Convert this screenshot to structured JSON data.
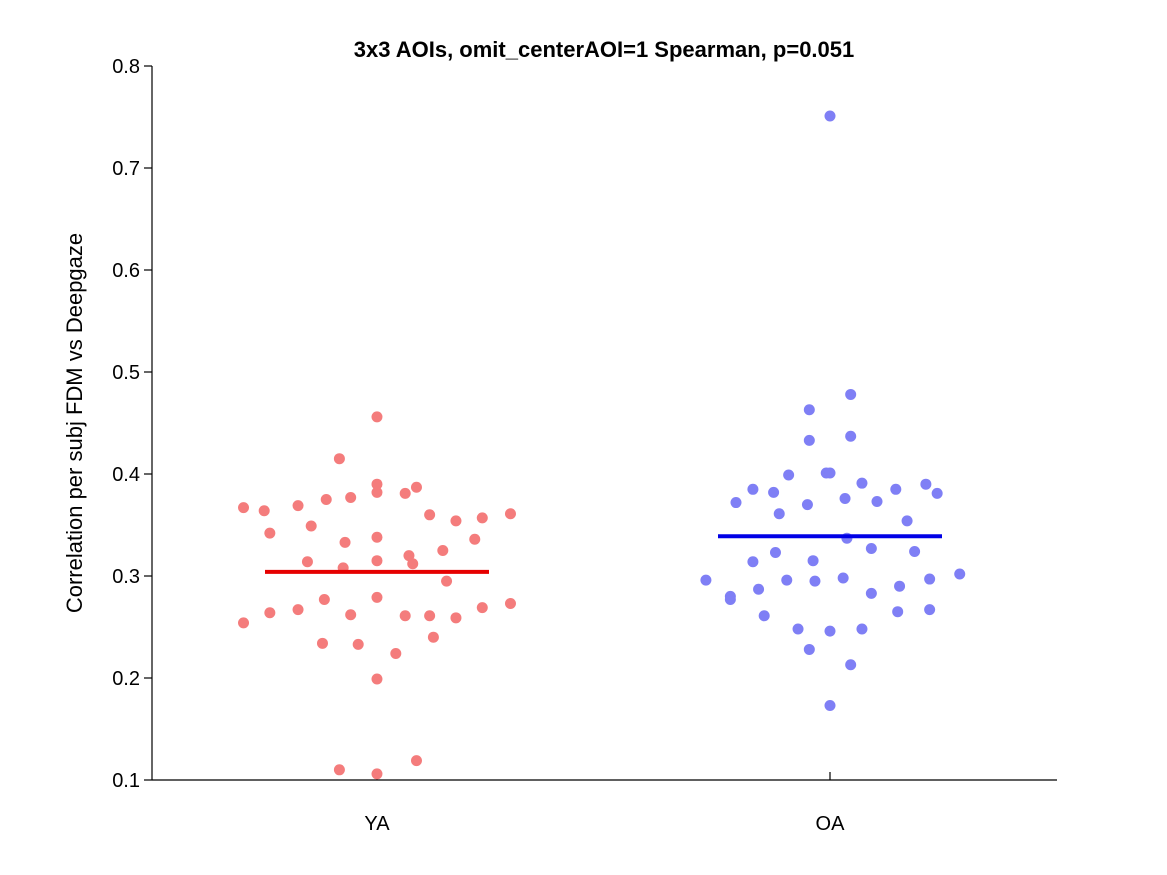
{
  "chart_data": {
    "type": "scatter",
    "title": "3x3 AOIs, omit_centerAOI=1 Spearman, p=0.051",
    "xlabel": "",
    "ylabel": "Correlation per subj FDM vs Deepgaze",
    "ylim": [
      0.1,
      0.8
    ],
    "yticks": [
      "0.1",
      "0.2",
      "0.3",
      "0.4",
      "0.5",
      "0.6",
      "0.7",
      "0.8"
    ],
    "categories": [
      "YA",
      "OA"
    ],
    "series": [
      {
        "name": "YA",
        "color": "#f47c7c",
        "mean": 0.304,
        "mean_color": "#e60000",
        "points": [
          {
            "jitter": -0.71,
            "y": 0.367
          },
          {
            "jitter": -0.6,
            "y": 0.364
          },
          {
            "jitter": -0.42,
            "y": 0.369
          },
          {
            "jitter": -0.57,
            "y": 0.342
          },
          {
            "jitter": -0.35,
            "y": 0.349
          },
          {
            "jitter": -0.27,
            "y": 0.375
          },
          {
            "jitter": -0.14,
            "y": 0.377
          },
          {
            "jitter": -0.2,
            "y": 0.415
          },
          {
            "jitter": 0.0,
            "y": 0.456
          },
          {
            "jitter": 0.0,
            "y": 0.39
          },
          {
            "jitter": 0.0,
            "y": 0.382
          },
          {
            "jitter": 0.15,
            "y": 0.381
          },
          {
            "jitter": 0.21,
            "y": 0.387
          },
          {
            "jitter": 0.28,
            "y": 0.36
          },
          {
            "jitter": 0.42,
            "y": 0.354
          },
          {
            "jitter": 0.56,
            "y": 0.357
          },
          {
            "jitter": 0.71,
            "y": 0.361
          },
          {
            "jitter": 0.52,
            "y": 0.336
          },
          {
            "jitter": 0.35,
            "y": 0.325
          },
          {
            "jitter": 0.17,
            "y": 0.32
          },
          {
            "jitter": 0.19,
            "y": 0.312
          },
          {
            "jitter": 0.0,
            "y": 0.338
          },
          {
            "jitter": 0.0,
            "y": 0.315
          },
          {
            "jitter": -0.17,
            "y": 0.333
          },
          {
            "jitter": -0.37,
            "y": 0.314
          },
          {
            "jitter": -0.18,
            "y": 0.308
          },
          {
            "jitter": 0.37,
            "y": 0.295
          },
          {
            "jitter": -0.71,
            "y": 0.254
          },
          {
            "jitter": -0.57,
            "y": 0.264
          },
          {
            "jitter": -0.42,
            "y": 0.267
          },
          {
            "jitter": -0.28,
            "y": 0.277
          },
          {
            "jitter": -0.14,
            "y": 0.262
          },
          {
            "jitter": 0.0,
            "y": 0.279
          },
          {
            "jitter": 0.15,
            "y": 0.261
          },
          {
            "jitter": 0.28,
            "y": 0.261
          },
          {
            "jitter": 0.42,
            "y": 0.259
          },
          {
            "jitter": 0.56,
            "y": 0.269
          },
          {
            "jitter": 0.71,
            "y": 0.273
          },
          {
            "jitter": -0.29,
            "y": 0.234
          },
          {
            "jitter": -0.1,
            "y": 0.233
          },
          {
            "jitter": 0.3,
            "y": 0.24
          },
          {
            "jitter": 0.1,
            "y": 0.224
          },
          {
            "jitter": 0.0,
            "y": 0.199
          },
          {
            "jitter": -0.2,
            "y": 0.11
          },
          {
            "jitter": 0.0,
            "y": 0.106
          },
          {
            "jitter": 0.21,
            "y": 0.119
          }
        ]
      },
      {
        "name": "OA",
        "color": "#7f7ff5",
        "mean": 0.339,
        "mean_color": "#0000e6",
        "points": [
          {
            "jitter": 0.0,
            "y": 0.751
          },
          {
            "jitter": 0.11,
            "y": 0.478
          },
          {
            "jitter": -0.11,
            "y": 0.463
          },
          {
            "jitter": -0.11,
            "y": 0.433
          },
          {
            "jitter": 0.11,
            "y": 0.437
          },
          {
            "jitter": -0.5,
            "y": 0.372
          },
          {
            "jitter": -0.41,
            "y": 0.385
          },
          {
            "jitter": -0.3,
            "y": 0.382
          },
          {
            "jitter": -0.22,
            "y": 0.399
          },
          {
            "jitter": -0.02,
            "y": 0.401
          },
          {
            "jitter": 0.0,
            "y": 0.401
          },
          {
            "jitter": 0.17,
            "y": 0.391
          },
          {
            "jitter": 0.35,
            "y": 0.385
          },
          {
            "jitter": 0.51,
            "y": 0.39
          },
          {
            "jitter": 0.57,
            "y": 0.381
          },
          {
            "jitter": -0.12,
            "y": 0.37
          },
          {
            "jitter": 0.08,
            "y": 0.376
          },
          {
            "jitter": 0.25,
            "y": 0.373
          },
          {
            "jitter": -0.27,
            "y": 0.361
          },
          {
            "jitter": 0.41,
            "y": 0.354
          },
          {
            "jitter": 0.09,
            "y": 0.337
          },
          {
            "jitter": 0.22,
            "y": 0.327
          },
          {
            "jitter": 0.45,
            "y": 0.324
          },
          {
            "jitter": -0.41,
            "y": 0.314
          },
          {
            "jitter": -0.29,
            "y": 0.323
          },
          {
            "jitter": -0.09,
            "y": 0.315
          },
          {
            "jitter": -0.66,
            "y": 0.296
          },
          {
            "jitter": -0.38,
            "y": 0.287
          },
          {
            "jitter": -0.23,
            "y": 0.296
          },
          {
            "jitter": -0.08,
            "y": 0.295
          },
          {
            "jitter": 0.07,
            "y": 0.298
          },
          {
            "jitter": 0.22,
            "y": 0.283
          },
          {
            "jitter": 0.37,
            "y": 0.29
          },
          {
            "jitter": 0.53,
            "y": 0.297
          },
          {
            "jitter": 0.69,
            "y": 0.302
          },
          {
            "jitter": -0.53,
            "y": 0.28
          },
          {
            "jitter": -0.53,
            "y": 0.277
          },
          {
            "jitter": 0.36,
            "y": 0.265
          },
          {
            "jitter": 0.53,
            "y": 0.267
          },
          {
            "jitter": -0.35,
            "y": 0.261
          },
          {
            "jitter": -0.17,
            "y": 0.248
          },
          {
            "jitter": 0.0,
            "y": 0.246
          },
          {
            "jitter": 0.17,
            "y": 0.248
          },
          {
            "jitter": -0.11,
            "y": 0.228
          },
          {
            "jitter": 0.11,
            "y": 0.213
          },
          {
            "jitter": 0.0,
            "y": 0.173
          }
        ]
      }
    ]
  }
}
